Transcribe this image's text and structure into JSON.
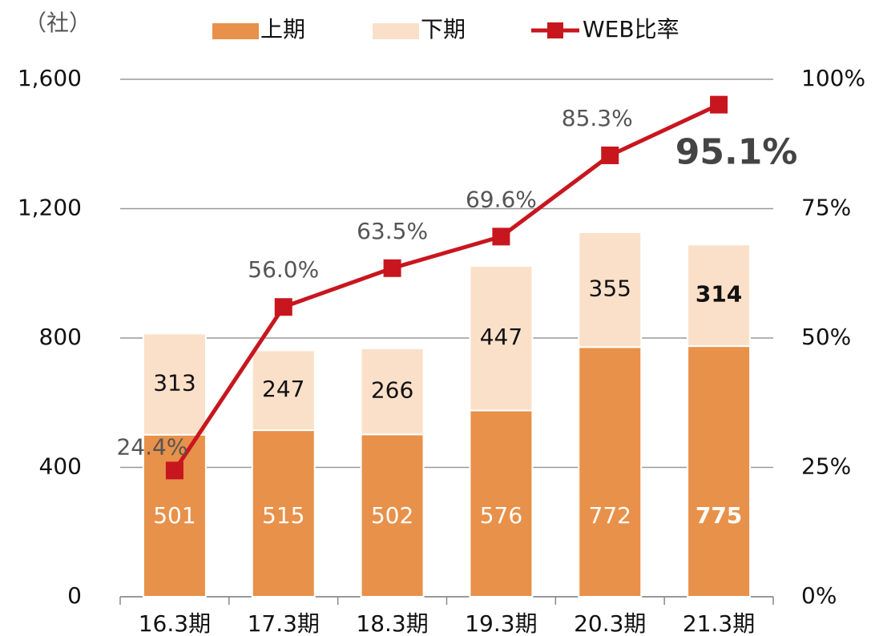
{
  "chart_data": {
    "type": "bar",
    "stacked": true,
    "y_axis_label": "（社）",
    "categories": [
      "16.3期",
      "17.3期",
      "18.3期",
      "19.3期",
      "20.3期",
      "21.3期"
    ],
    "series": [
      {
        "name": "上期",
        "color": "#e8914a",
        "values": [
          501,
          515,
          502,
          576,
          772,
          775
        ]
      },
      {
        "name": "下期",
        "color": "#fbe0c9",
        "values": [
          313,
          247,
          266,
          447,
          355,
          314
        ]
      },
      {
        "name": "WEB比率",
        "type": "line",
        "axis": "y2",
        "color": "#c8161e",
        "values": [
          24.4,
          56.0,
          63.5,
          69.6,
          85.3,
          95.1
        ],
        "value_labels": [
          "24.4%",
          "56.0%",
          "63.5%",
          "69.6%",
          "85.3%",
          "95.1%"
        ]
      }
    ],
    "ylim": [
      0,
      1600
    ],
    "yticks": [
      0,
      400,
      800,
      {
        "value": 1200,
        "label": "1,200"
      },
      {
        "value": 1600,
        "label": "1,600"
      }
    ],
    "y2lim": [
      0,
      100
    ],
    "y2ticks": [
      {
        "value": 0,
        "label": "0%"
      },
      {
        "value": 25,
        "label": "25%"
      },
      {
        "value": 50,
        "label": "50%"
      },
      {
        "value": 75,
        "label": "75%"
      },
      {
        "value": 100,
        "label": "100%"
      }
    ],
    "grid": true,
    "legend": "top"
  }
}
